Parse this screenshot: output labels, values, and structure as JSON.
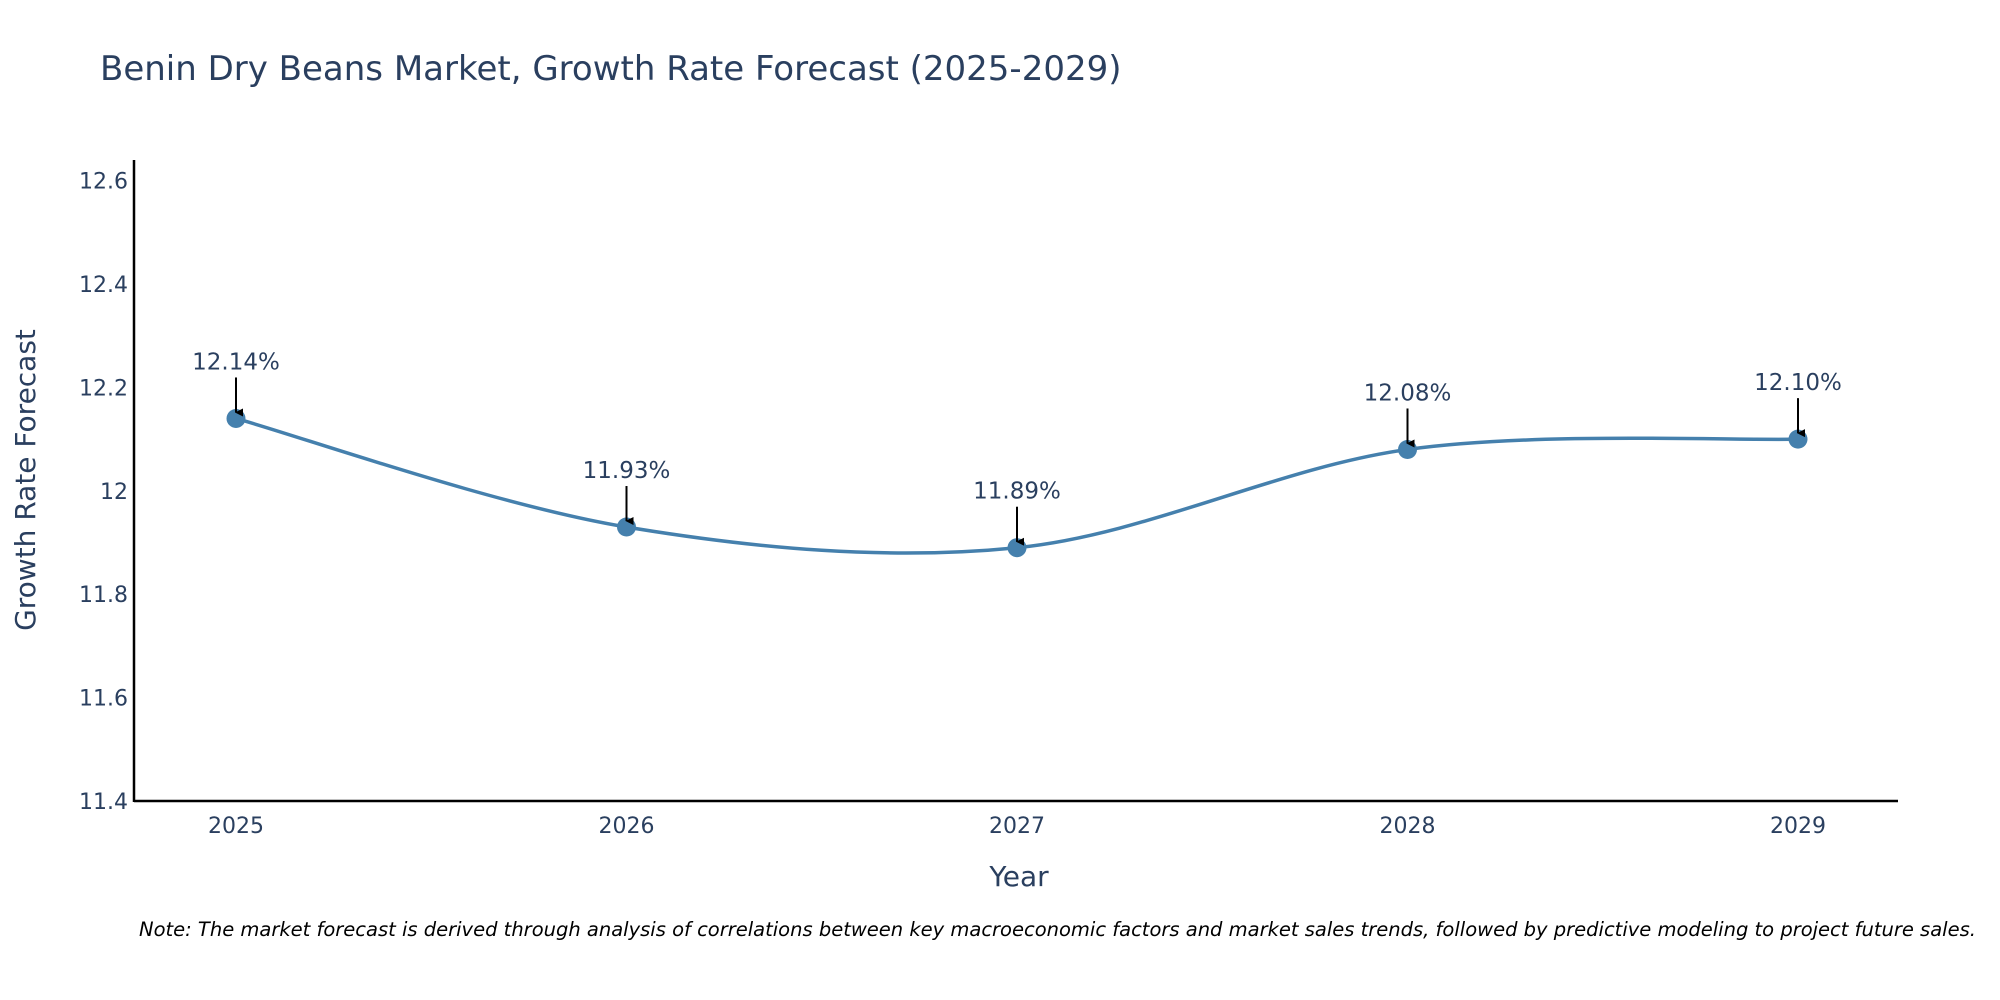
{
  "colors": {
    "line": "#4580ad",
    "marker": "#4580ad",
    "axis": "#000000",
    "text": "#2a3f5f",
    "arrow": "#000000"
  },
  "chart_data": {
    "type": "line",
    "title": "Benin Dry Beans Market, Growth Rate Forecast (2025-2029)",
    "xlabel": "Year",
    "ylabel": "Growth Rate Forecast",
    "categories": [
      "2025",
      "2026",
      "2027",
      "2028",
      "2029"
    ],
    "series": [
      {
        "name": "Growth Rate Forecast",
        "values": [
          12.14,
          11.93,
          11.89,
          12.08,
          12.1
        ]
      }
    ],
    "data_labels": [
      "12.14%",
      "11.93%",
      "11.89%",
      "12.08%",
      "12.10%"
    ],
    "ylim": [
      11.4,
      12.64
    ],
    "yticks": [
      11.4,
      11.6,
      11.8,
      12.0,
      12.2,
      12.4,
      12.6
    ],
    "ytick_labels": [
      "11.4",
      "11.6",
      "11.8",
      "12",
      "12.2",
      "12.4",
      "12.6"
    ],
    "grid": false,
    "line_shape": "spline",
    "note": "Note: The market forecast is derived through analysis of correlations between key macroeconomic factors and market sales trends, followed by predictive modeling to project future sales."
  }
}
